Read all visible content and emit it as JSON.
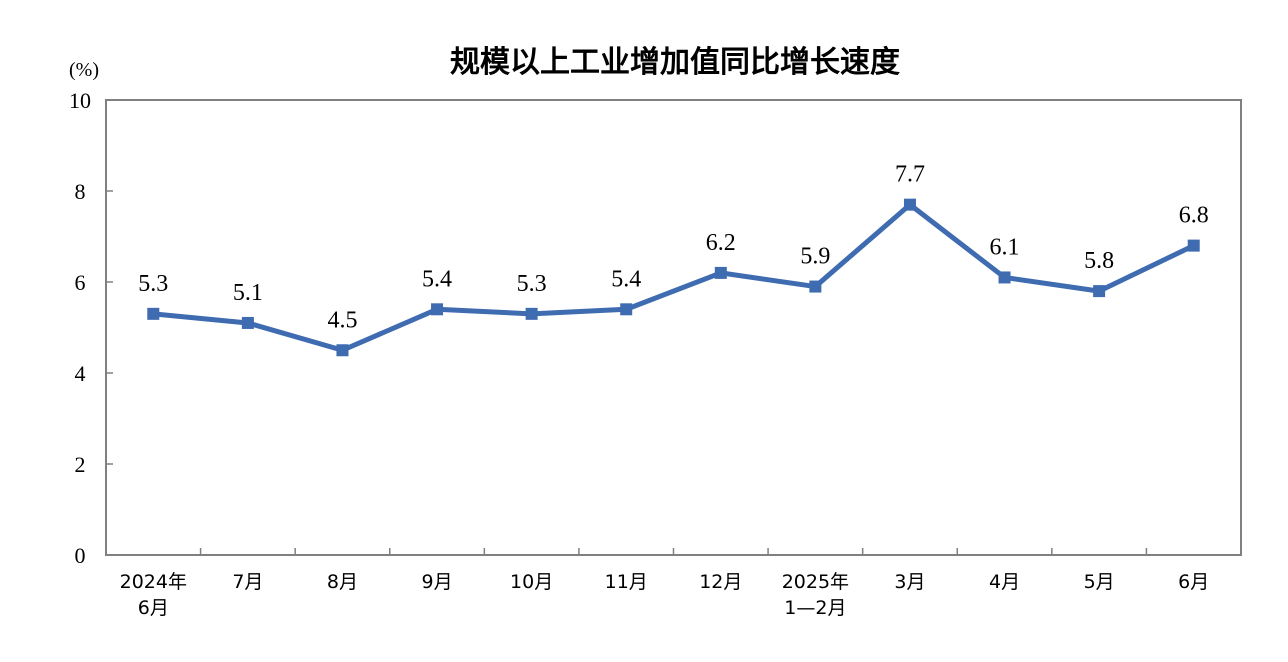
{
  "chart_data": {
    "type": "line",
    "title": "规模以上工业增加值同比增长速度",
    "unit_label": "(%)",
    "categories": [
      [
        "2024年",
        "6月"
      ],
      [
        "7月"
      ],
      [
        "8月"
      ],
      [
        "9月"
      ],
      [
        "10月"
      ],
      [
        "11月"
      ],
      [
        "12月"
      ],
      [
        "2025年",
        "1—2月"
      ],
      [
        "3月"
      ],
      [
        "4月"
      ],
      [
        "5月"
      ],
      [
        "6月"
      ]
    ],
    "series": [
      {
        "values": [
          5.3,
          5.1,
          4.5,
          5.4,
          5.3,
          5.4,
          6.2,
          5.9,
          7.7,
          6.1,
          5.8,
          6.8
        ],
        "labels": [
          "5.3",
          "5.1",
          "4.5",
          "5.4",
          "5.3",
          "5.4",
          "6.2",
          "5.9",
          "7.7",
          "6.1",
          "5.8",
          "6.8"
        ],
        "color": "#3f6bb1"
      }
    ],
    "ylim": [
      0,
      10
    ],
    "yticks": [
      0,
      2,
      4,
      6,
      8,
      10
    ],
    "grid": false,
    "legend": "none",
    "colors": {
      "line": "#3f6bb1",
      "axis": "#808080"
    }
  }
}
